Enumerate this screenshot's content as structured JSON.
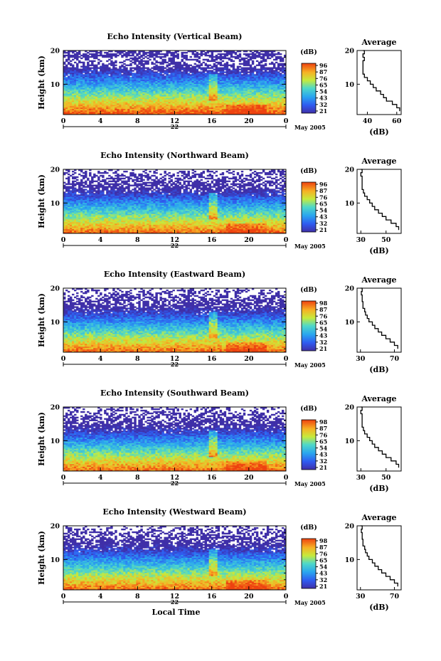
{
  "chart_data": [
    {
      "type": "heatmap",
      "title": "Echo Intensity (Vertical Beam)",
      "ylabel": "Height (km)",
      "x_ticks": [
        "0",
        "4",
        "8",
        "12",
        "16",
        "20",
        "0"
      ],
      "x_day_label": "22",
      "x_date_label": "May 2005",
      "xlim": [
        0,
        24
      ],
      "y_ticks": [
        "20",
        "10"
      ],
      "ylim": [
        1,
        20
      ],
      "colorbar_unit": "(dB)",
      "colorbar_ticks": [
        "96",
        "87",
        "76",
        "65",
        "54",
        "43",
        "32",
        "21"
      ],
      "clim": [
        21,
        96
      ],
      "profile": {
        "title": "Average",
        "xlabel": "(dB)",
        "x_ticks": [
          "40",
          "60"
        ],
        "xlim": [
          33,
          63
        ],
        "y_ticks": [
          "20",
          "10"
        ],
        "heights_km": [
          2,
          3,
          4,
          5,
          6,
          7,
          8,
          9,
          10,
          11,
          12,
          13,
          14,
          15,
          16,
          17,
          18,
          19,
          20
        ],
        "values_db": [
          62,
          60,
          57,
          53,
          51,
          49,
          46,
          44,
          42,
          40,
          38,
          37,
          37,
          37,
          37,
          38,
          37,
          38,
          37
        ]
      }
    },
    {
      "type": "heatmap",
      "title": "Echo Intensity (Northward Beam)",
      "ylabel": "Height (km)",
      "x_ticks": [
        "0",
        "4",
        "8",
        "12",
        "16",
        "20",
        "0"
      ],
      "x_day_label": "22",
      "x_date_label": "May 2005",
      "xlim": [
        0,
        24
      ],
      "y_ticks": [
        "20",
        "10"
      ],
      "ylim": [
        1,
        20
      ],
      "colorbar_unit": "(dB)",
      "colorbar_ticks": [
        "96",
        "87",
        "76",
        "65",
        "54",
        "43",
        "32",
        "21"
      ],
      "clim": [
        21,
        96
      ],
      "profile": {
        "title": "Average",
        "xlabel": "(dB)",
        "x_ticks": [
          "30",
          "50"
        ],
        "xlim": [
          27,
          62
        ],
        "y_ticks": [
          "20",
          "10"
        ],
        "heights_km": [
          2,
          3,
          4,
          5,
          6,
          7,
          8,
          9,
          10,
          11,
          12,
          13,
          14,
          15,
          16,
          17,
          18,
          19,
          20
        ],
        "values_db": [
          60,
          58,
          54,
          50,
          47,
          44,
          41,
          39,
          37,
          35,
          33,
          32,
          31,
          31,
          31,
          31,
          30,
          31,
          30
        ]
      }
    },
    {
      "type": "heatmap",
      "title": "Echo Intensity (Eastward Beam)",
      "ylabel": "Height (km)",
      "x_ticks": [
        "0",
        "4",
        "8",
        "12",
        "16",
        "20",
        "0"
      ],
      "x_day_label": "22",
      "x_date_label": "May 2005",
      "xlim": [
        0,
        24
      ],
      "y_ticks": [
        "20",
        "10"
      ],
      "ylim": [
        1,
        20
      ],
      "colorbar_unit": "(dB)",
      "colorbar_ticks": [
        "98",
        "87",
        "76",
        "65",
        "54",
        "43",
        "32",
        "21"
      ],
      "clim": [
        21,
        98
      ],
      "profile": {
        "title": "Average",
        "xlabel": "(dB)",
        "x_ticks": [
          "30",
          "70"
        ],
        "xlim": [
          26,
          78
        ],
        "y_ticks": [
          "20",
          "10"
        ],
        "heights_km": [
          2,
          3,
          4,
          5,
          6,
          7,
          8,
          9,
          10,
          11,
          12,
          13,
          14,
          15,
          16,
          17,
          18,
          19,
          20
        ],
        "values_db": [
          74,
          70,
          65,
          60,
          55,
          51,
          47,
          44,
          40,
          38,
          36,
          35,
          33,
          33,
          32,
          32,
          31,
          32,
          30
        ]
      }
    },
    {
      "type": "heatmap",
      "title": "Echo Intensity (Southward Beam)",
      "ylabel": "Height (km)",
      "x_ticks": [
        "0",
        "4",
        "8",
        "12",
        "16",
        "20",
        "0"
      ],
      "x_day_label": "22",
      "x_date_label": "May 2005",
      "xlim": [
        0,
        24
      ],
      "y_ticks": [
        "20",
        "10"
      ],
      "ylim": [
        1,
        20
      ],
      "colorbar_unit": "(dB)",
      "colorbar_ticks": [
        "98",
        "87",
        "76",
        "65",
        "54",
        "43",
        "32",
        "21"
      ],
      "clim": [
        21,
        98
      ],
      "profile": {
        "title": "Average",
        "xlabel": "(dB)",
        "x_ticks": [
          "30",
          "50"
        ],
        "xlim": [
          27,
          62
        ],
        "y_ticks": [
          "20",
          "10"
        ],
        "heights_km": [
          2,
          3,
          4,
          5,
          6,
          7,
          8,
          9,
          10,
          11,
          12,
          13,
          14,
          15,
          16,
          17,
          18,
          19,
          20
        ],
        "values_db": [
          60,
          58,
          54,
          50,
          47,
          44,
          41,
          39,
          37,
          35,
          33,
          32,
          31,
          31,
          31,
          31,
          30,
          31,
          30
        ]
      }
    },
    {
      "type": "heatmap",
      "title": "Echo Intensity (Westward Beam)",
      "ylabel": "Height (km)",
      "x_ticks": [
        "0",
        "4",
        "8",
        "12",
        "16",
        "20",
        "0"
      ],
      "x_day_label": "22",
      "x_date_label": "May 2005",
      "xlabel": "Local Time",
      "xlim": [
        0,
        24
      ],
      "y_ticks": [
        "20",
        "10"
      ],
      "ylim": [
        1,
        20
      ],
      "colorbar_unit": "(dB)",
      "colorbar_ticks": [
        "98",
        "87",
        "76",
        "65",
        "54",
        "43",
        "32",
        "21"
      ],
      "clim": [
        21,
        98
      ],
      "profile": {
        "title": "Average",
        "xlabel": "(dB)",
        "x_ticks": [
          "30",
          "70"
        ],
        "xlim": [
          26,
          78
        ],
        "y_ticks": [
          "20",
          "10"
        ],
        "heights_km": [
          2,
          3,
          4,
          5,
          6,
          7,
          8,
          9,
          10,
          11,
          12,
          13,
          14,
          15,
          16,
          17,
          18,
          19,
          20
        ],
        "values_db": [
          74,
          70,
          65,
          60,
          55,
          51,
          47,
          44,
          40,
          38,
          36,
          35,
          33,
          33,
          32,
          32,
          31,
          32,
          30
        ]
      }
    }
  ]
}
